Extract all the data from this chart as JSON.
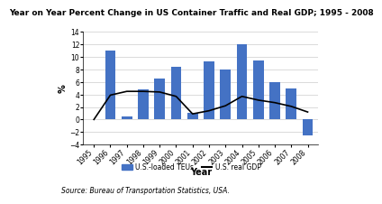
{
  "title": "Year on Year Percent Change in US Container Traffic and Real GDP; 1995 - 2008",
  "xlabel": "Year",
  "ylabel": "%",
  "years": [
    "1995",
    "1996",
    "1997",
    "1998",
    "1999",
    "2000",
    "2001",
    "2002",
    "2003",
    "2004",
    "2005",
    "2006",
    "2007",
    "2008"
  ],
  "bar_values": [
    0,
    11,
    0.5,
    4.8,
    6.5,
    8.5,
    1.0,
    9.3,
    8.0,
    12.0,
    9.5,
    6.0,
    5.0,
    -2.5
  ],
  "line_values": [
    0.0,
    3.9,
    4.5,
    4.5,
    4.4,
    3.7,
    0.9,
    1.4,
    2.2,
    3.7,
    3.1,
    2.7,
    2.1,
    1.2
  ],
  "bar_color": "#4472C4",
  "line_color": "#000000",
  "ylim": [
    -4,
    14
  ],
  "yticks": [
    -4,
    -2,
    0,
    2,
    4,
    6,
    8,
    10,
    12,
    14
  ],
  "legend_bar_label": "U.S.-loaded TEUs",
  "legend_line_label": "U.S. real GDP",
  "source_text": "Source: Bureau of Transportation Statistics, USA.",
  "title_fontsize": 6.5,
  "tick_fontsize": 5.5,
  "label_fontsize": 7,
  "legend_fontsize": 5.5,
  "source_fontsize": 5.5,
  "background_color": "#ffffff"
}
